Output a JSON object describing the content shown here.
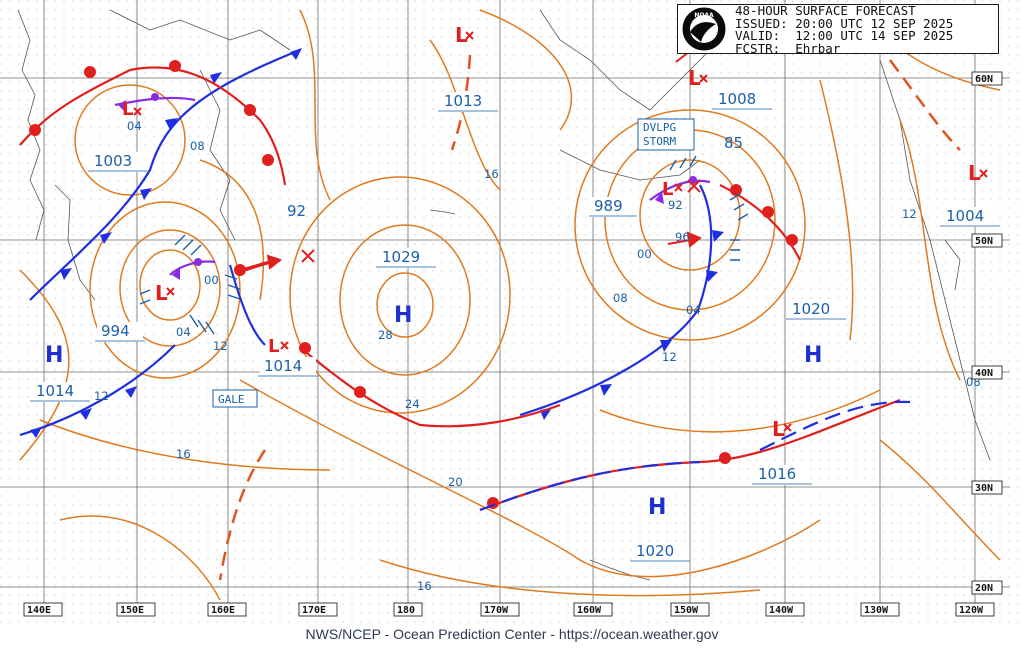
{
  "header": {
    "title": "48-HOUR SURFACE FORECAST",
    "issued": "ISSUED: 20:00 UTC 12 SEP 2025",
    "valid": "VALID:  12:00 UTC 14 SEP 2025",
    "forecaster": "FCSTR:  Ehrbar",
    "logo": "NOAA"
  },
  "footer": "NWS/NCEP - Ocean Prediction Center - https://ocean.weather.gov",
  "longitude_labels": [
    "140E",
    "150E",
    "160E",
    "170E",
    "180",
    "170W",
    "160W",
    "150W",
    "140W",
    "130W",
    "120W"
  ],
  "latitude_labels": [
    "60N",
    "50N",
    "40N",
    "30N",
    "20N"
  ],
  "pressure_centers": [
    {
      "type": "L",
      "value": "1003"
    },
    {
      "type": "L",
      "value": "994"
    },
    {
      "type": "L",
      "value": "1014"
    },
    {
      "type": "L",
      "value": "1013"
    },
    {
      "type": "L",
      "value": "989"
    },
    {
      "type": "L",
      "value": "1008"
    },
    {
      "type": "L",
      "value": "1004"
    },
    {
      "type": "L",
      "value": "1016"
    },
    {
      "type": "H",
      "value": "1029"
    },
    {
      "type": "H",
      "value": "1014"
    },
    {
      "type": "H",
      "value": "1020"
    },
    {
      "type": "H",
      "value": "1020"
    }
  ],
  "isobar_labels": [
    "04",
    "08",
    "00",
    "04",
    "12",
    "12",
    "16",
    "92",
    "16",
    "28",
    "24",
    "20",
    "16",
    "00",
    "08",
    "04",
    "12",
    "92",
    "96",
    "85",
    "12",
    "08"
  ],
  "warnings": [
    "GALE",
    "DVLPG\nSTORM"
  ],
  "colors": {
    "isobar": "#e07a1f",
    "cold_front": "#1f2fe0",
    "warm_front": "#e01f1f",
    "occluded": "#8a2be2",
    "label": "#1a5fa8",
    "grid": "#6e6e6e",
    "coast": "#555555"
  }
}
